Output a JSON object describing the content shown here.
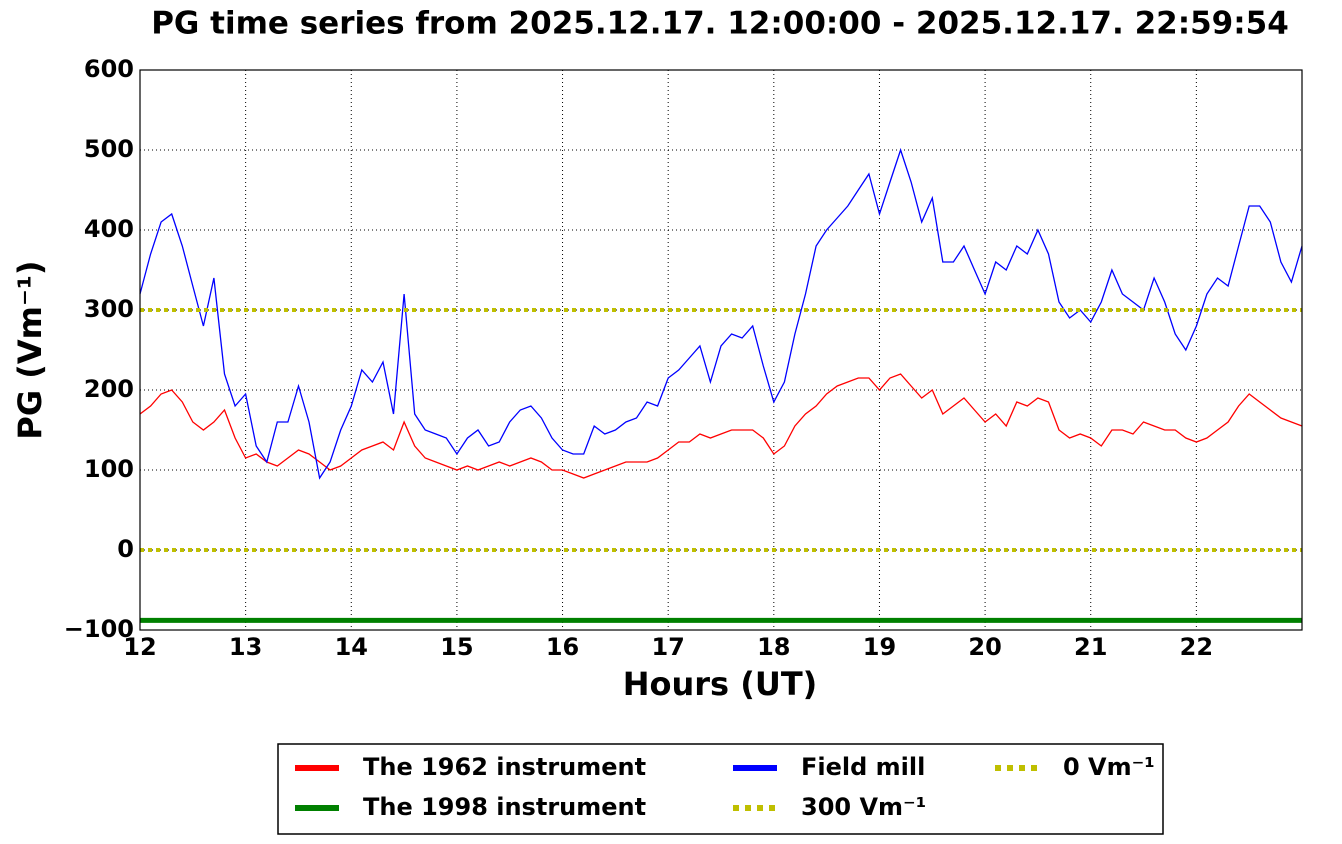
{
  "chart_data": {
    "type": "line",
    "title": "PG time series from 2025.12.17. 12:00:00 - 2025.12.17. 22:59:54",
    "xlabel": "Hours (UT)",
    "ylabel": "PG (Vm⁻¹)",
    "xlim": [
      12,
      23
    ],
    "ylim": [
      -100,
      600
    ],
    "xticks": [
      12,
      13,
      14,
      15,
      16,
      17,
      18,
      19,
      20,
      21,
      22
    ],
    "yticks": [
      {
        "value": -100,
        "label": "−100"
      },
      0,
      100,
      200,
      300,
      400,
      500,
      600
    ],
    "grid": true,
    "legend": "bottom",
    "x": [
      12.0,
      12.1,
      12.2,
      12.3,
      12.4,
      12.5,
      12.6,
      12.7,
      12.8,
      12.9,
      13.0,
      13.1,
      13.2,
      13.3,
      13.4,
      13.5,
      13.6,
      13.7,
      13.8,
      13.9,
      14.0,
      14.1,
      14.2,
      14.3,
      14.4,
      14.5,
      14.6,
      14.7,
      14.8,
      14.9,
      15.0,
      15.1,
      15.2,
      15.3,
      15.4,
      15.5,
      15.6,
      15.7,
      15.8,
      15.9,
      16.0,
      16.1,
      16.2,
      16.3,
      16.4,
      16.5,
      16.6,
      16.7,
      16.8,
      16.9,
      17.0,
      17.1,
      17.2,
      17.3,
      17.4,
      17.5,
      17.6,
      17.7,
      17.8,
      17.9,
      18.0,
      18.1,
      18.2,
      18.3,
      18.4,
      18.5,
      18.6,
      18.7,
      18.8,
      18.9,
      19.0,
      19.1,
      19.2,
      19.3,
      19.4,
      19.5,
      19.6,
      19.7,
      19.8,
      19.9,
      20.0,
      20.1,
      20.2,
      20.3,
      20.4,
      20.5,
      20.6,
      20.7,
      20.8,
      20.9,
      21.0,
      21.1,
      21.2,
      21.3,
      21.4,
      21.5,
      21.6,
      21.7,
      21.8,
      21.9,
      22.0,
      22.1,
      22.2,
      22.3,
      22.4,
      22.5,
      22.6,
      22.7,
      22.8,
      22.9,
      23.0
    ],
    "series": [
      {
        "name": "The 1962 instrument",
        "color": "#ff0000",
        "width": 1.3,
        "values": [
          170,
          180,
          195,
          200,
          185,
          160,
          150,
          160,
          175,
          140,
          115,
          120,
          110,
          105,
          115,
          125,
          120,
          110,
          100,
          105,
          115,
          125,
          130,
          135,
          125,
          160,
          130,
          115,
          110,
          105,
          100,
          105,
          100,
          105,
          110,
          105,
          110,
          115,
          110,
          100,
          100,
          95,
          90,
          95,
          100,
          105,
          110,
          110,
          110,
          115,
          125,
          135,
          135,
          145,
          140,
          145,
          150,
          150,
          150,
          140,
          120,
          130,
          155,
          170,
          180,
          195,
          205,
          210,
          215,
          215,
          200,
          215,
          220,
          205,
          190,
          200,
          170,
          180,
          190,
          175,
          160,
          170,
          155,
          185,
          180,
          190,
          185,
          150,
          140,
          145,
          140,
          130,
          150,
          150,
          145,
          160,
          155,
          150,
          150,
          140,
          135,
          140,
          150,
          160,
          180,
          195,
          185,
          175,
          165,
          160,
          155
        ]
      },
      {
        "name": "The 1998 instrument",
        "color": "#008000",
        "width": 5,
        "x": [
          12,
          23
        ],
        "values": [
          -88,
          -88
        ]
      },
      {
        "name": "Field mill",
        "color": "#0000ff",
        "width": 1.3,
        "values": [
          320,
          370,
          410,
          420,
          380,
          330,
          280,
          340,
          220,
          180,
          195,
          130,
          110,
          160,
          160,
          205,
          160,
          90,
          110,
          150,
          180,
          225,
          210,
          235,
          170,
          320,
          170,
          150,
          145,
          140,
          120,
          140,
          150,
          130,
          135,
          160,
          175,
          180,
          165,
          140,
          125,
          120,
          120,
          155,
          145,
          150,
          160,
          165,
          185,
          180,
          215,
          225,
          240,
          255,
          210,
          255,
          270,
          265,
          280,
          230,
          185,
          210,
          270,
          320,
          380,
          400,
          415,
          430,
          450,
          470,
          420,
          460,
          500,
          460,
          410,
          440,
          360,
          360,
          380,
          350,
          320,
          360,
          350,
          380,
          370,
          400,
          370,
          310,
          290,
          300,
          285,
          310,
          350,
          320,
          310,
          300,
          340,
          310,
          270,
          250,
          280,
          320,
          340,
          330,
          380,
          430,
          430,
          410,
          360,
          335,
          380
        ]
      },
      {
        "name": "300 Vm⁻¹",
        "color": "#bfbf00",
        "width": 4,
        "dash": "4 4",
        "x": [
          12,
          23
        ],
        "values": [
          300,
          300
        ]
      },
      {
        "name": "0 Vm⁻¹",
        "color": "#bfbf00",
        "width": 4,
        "dash": "4 4",
        "x": [
          12,
          23
        ],
        "values": [
          0,
          0
        ]
      }
    ]
  }
}
